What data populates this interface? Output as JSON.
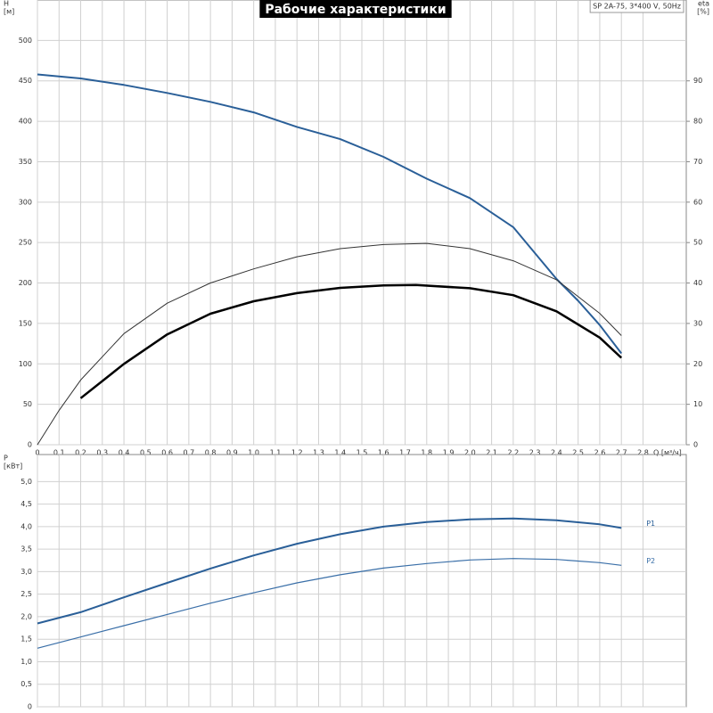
{
  "chart_data": [
    {
      "type": "line",
      "title": "Рабочие характеристики",
      "annotation": "SP 2A-75, 3*400 V, 50Hz",
      "ylabel": [
        "H",
        "[м]"
      ],
      "y2label": [
        "eta",
        "[%]"
      ],
      "xlabel": "Q [м³/ч]",
      "xlim": [
        0,
        3.0
      ],
      "ylim": [
        0,
        550
      ],
      "y2lim": [
        0,
        110
      ],
      "grid": true,
      "xticks": [
        0,
        {
          "value": 0.1,
          "label": "0,1"
        },
        {
          "value": 0.2,
          "label": "0,2"
        },
        {
          "value": 0.3,
          "label": "0,3"
        },
        {
          "value": 0.4,
          "label": "0,4"
        },
        {
          "value": 0.5,
          "label": "0,5"
        },
        {
          "value": 0.6,
          "label": "0,6"
        },
        {
          "value": 0.7,
          "label": "0,7"
        },
        {
          "value": 0.8,
          "label": "0,8"
        },
        {
          "value": 0.9,
          "label": "0,9"
        },
        {
          "value": 1.0,
          "label": "1,0"
        },
        {
          "value": 1.1,
          "label": "1,1"
        },
        {
          "value": 1.2,
          "label": "1,2"
        },
        {
          "value": 1.3,
          "label": "1,3"
        },
        {
          "value": 1.4,
          "label": "1,4"
        },
        {
          "value": 1.5,
          "label": "1,5"
        },
        {
          "value": 1.6,
          "label": "1,6"
        },
        {
          "value": 1.7,
          "label": "1,7"
        },
        {
          "value": 1.8,
          "label": "1,8"
        },
        {
          "value": 1.9,
          "label": "1,9"
        },
        {
          "value": 2.0,
          "label": "2,0"
        },
        {
          "value": 2.1,
          "label": "2,1"
        },
        {
          "value": 2.2,
          "label": "2,2"
        },
        {
          "value": 2.3,
          "label": "2,3"
        },
        {
          "value": 2.4,
          "label": "2,4"
        },
        {
          "value": 2.5,
          "label": "2,5"
        },
        {
          "value": 2.6,
          "label": "2,6"
        },
        {
          "value": 2.7,
          "label": "2,7"
        },
        {
          "value": 2.8,
          "label": "2,8"
        }
      ],
      "yticks": [
        0,
        50,
        100,
        150,
        200,
        250,
        300,
        350,
        400,
        450,
        500
      ],
      "y2ticks": [
        0,
        10,
        20,
        30,
        40,
        50,
        60,
        70,
        80,
        90
      ],
      "series": [
        {
          "color": "#2a5f98",
          "line_width": 2,
          "x": [
            0,
            0.2,
            0.4,
            0.6,
            0.8,
            1.0,
            1.2,
            1.4,
            1.6,
            1.8,
            2.0,
            2.2,
            2.4,
            2.5,
            2.6,
            2.7
          ],
          "values": [
            458,
            453,
            445,
            435,
            424,
            411,
            393,
            378,
            356,
            329,
            305,
            269,
            205,
            178,
            148,
            113
          ]
        },
        {
          "color": "#333333",
          "line_width": 1,
          "axis": "y2",
          "x": [
            0,
            0.1,
            0.2,
            0.4,
            0.6,
            0.8,
            1.0,
            1.2,
            1.4,
            1.6,
            1.8,
            2.0,
            2.2,
            2.4,
            2.6,
            2.7
          ],
          "values": [
            0,
            8.5,
            16,
            27.5,
            35,
            40,
            43.5,
            46.5,
            48.5,
            49.5,
            49.8,
            48.5,
            45.5,
            40.8,
            32.5,
            27
          ]
        },
        {
          "color": "#000000",
          "line_width": 2.5,
          "axis": "y2",
          "x": [
            0.2,
            0.4,
            0.6,
            0.8,
            1.0,
            1.2,
            1.4,
            1.6,
            1.75,
            2.0,
            2.2,
            2.4,
            2.6,
            2.7
          ],
          "values": [
            11.5,
            20,
            27.3,
            32.4,
            35.5,
            37.5,
            38.8,
            39.4,
            39.5,
            38.7,
            37,
            33,
            26.5,
            21.5
          ]
        }
      ]
    },
    {
      "type": "line",
      "ylabel": [
        "P",
        "[кВт]"
      ],
      "xlim": [
        0,
        3.0
      ],
      "ylim": [
        0,
        5.6
      ],
      "grid": true,
      "yticks": [
        0,
        {
          "value": 0.5,
          "label": "0,5"
        },
        {
          "value": 1.0,
          "label": "1,0"
        },
        {
          "value": 1.5,
          "label": "1,5"
        },
        {
          "value": 2.0,
          "label": "2,0"
        },
        {
          "value": 2.5,
          "label": "2,5"
        },
        {
          "value": 3.0,
          "label": "3,0"
        },
        {
          "value": 3.5,
          "label": "3,5"
        },
        {
          "value": 4.0,
          "label": "4,0"
        },
        {
          "value": 4.5,
          "label": "4,5"
        },
        {
          "value": 5.0,
          "label": "5,0"
        }
      ],
      "series": [
        {
          "name": "P1",
          "color": "#2a5f98",
          "line_width": 2,
          "x": [
            0,
            0.2,
            0.4,
            0.6,
            0.8,
            1.0,
            1.2,
            1.4,
            1.6,
            1.8,
            2.0,
            2.2,
            2.4,
            2.6,
            2.7
          ],
          "values": [
            1.85,
            2.1,
            2.43,
            2.75,
            3.07,
            3.36,
            3.62,
            3.83,
            4.0,
            4.1,
            4.16,
            4.18,
            4.14,
            4.05,
            3.97
          ]
        },
        {
          "name": "P2",
          "color": "#3a6fa8",
          "line_width": 1.2,
          "x": [
            0,
            0.2,
            0.4,
            0.6,
            0.8,
            1.0,
            1.2,
            1.4,
            1.6,
            1.8,
            2.0,
            2.2,
            2.4,
            2.6,
            2.7
          ],
          "values": [
            1.3,
            1.55,
            1.8,
            2.05,
            2.3,
            2.53,
            2.75,
            2.93,
            3.08,
            3.18,
            3.26,
            3.29,
            3.27,
            3.2,
            3.14
          ]
        }
      ]
    }
  ]
}
